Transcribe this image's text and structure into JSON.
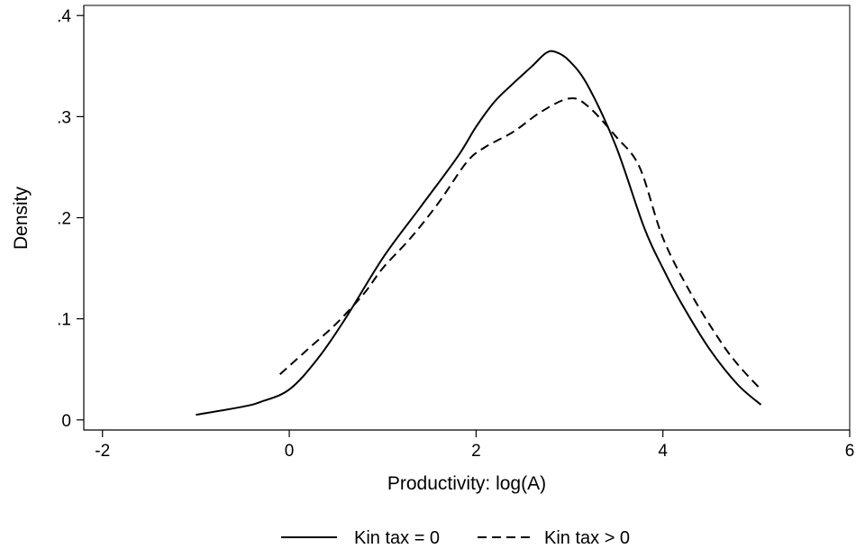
{
  "chart_data": {
    "type": "line",
    "xlabel": "Productivity: log(A)",
    "ylabel": "Density",
    "xlim": [
      -2.2,
      6
    ],
    "ylim": [
      -0.01,
      0.41
    ],
    "x_ticks": [
      -2,
      0,
      2,
      4,
      6
    ],
    "x_tick_labels": [
      "-2",
      "0",
      "2",
      "4",
      "6"
    ],
    "y_ticks": [
      0,
      0.1,
      0.2,
      0.3,
      0.4
    ],
    "y_tick_labels": [
      "0",
      ".1",
      ".2",
      ".3",
      ".4"
    ],
    "grid": false,
    "legend_position": "bottom",
    "series": [
      {
        "name": "Kin tax = 0",
        "line_style": "solid",
        "color": "#000000",
        "x": [
          -1.0,
          -0.5,
          -0.3,
          0.0,
          0.3,
          0.6,
          1.0,
          1.4,
          1.8,
          2.0,
          2.2,
          2.4,
          2.6,
          2.75,
          2.85,
          3.0,
          3.2,
          3.5,
          3.8,
          4.0,
          4.2,
          4.5,
          4.8,
          5.05
        ],
        "y": [
          0.005,
          0.013,
          0.018,
          0.03,
          0.06,
          0.1,
          0.16,
          0.21,
          0.26,
          0.29,
          0.315,
          0.333,
          0.35,
          0.363,
          0.364,
          0.355,
          0.33,
          0.27,
          0.19,
          0.15,
          0.115,
          0.07,
          0.035,
          0.015
        ]
      },
      {
        "name": "Kin tax > 0",
        "line_style": "dashed",
        "color": "#000000",
        "x": [
          -0.1,
          0.2,
          0.5,
          0.8,
          1.0,
          1.3,
          1.6,
          1.9,
          2.1,
          2.4,
          2.7,
          3.0,
          3.2,
          3.5,
          3.75,
          4.0,
          4.3,
          4.6,
          4.8,
          5.05
        ],
        "y": [
          0.045,
          0.07,
          0.095,
          0.125,
          0.15,
          0.18,
          0.215,
          0.255,
          0.27,
          0.285,
          0.305,
          0.318,
          0.31,
          0.28,
          0.25,
          0.18,
          0.125,
          0.08,
          0.055,
          0.03
        ]
      }
    ]
  }
}
